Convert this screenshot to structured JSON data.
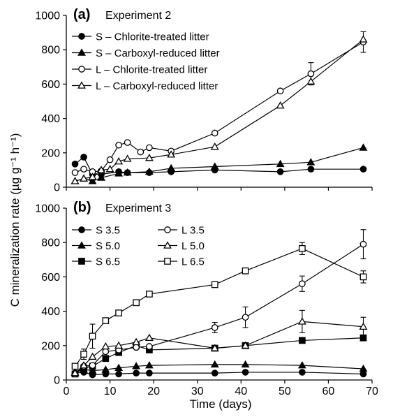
{
  "figure": {
    "ylabel": "C mineralization rate (µg g⁻¹ h⁻¹)",
    "xlabel": "Time (days)"
  },
  "chart_data": [
    {
      "type": "line",
      "panel_letter": "(a)",
      "title": "Experiment 2",
      "xlim": [
        0,
        70
      ],
      "ylim": [
        0,
        1000
      ],
      "x_ticks": [
        "0",
        "10",
        "20",
        "30",
        "40",
        "50",
        "60",
        "70"
      ],
      "y_ticks": [
        "0",
        "200",
        "400",
        "600",
        "800",
        "1000"
      ],
      "show_x_tick_labels": false,
      "legend_position": "top-left",
      "series": [
        {
          "name": "S – Chlorite-treated litter",
          "marker": "circle",
          "filled": true,
          "x": [
            2,
            4,
            6,
            8,
            12,
            14,
            19,
            24,
            34,
            49,
            56,
            68
          ],
          "y": [
            135,
            175,
            75,
            75,
            90,
            85,
            85,
            90,
            100,
            90,
            105,
            105
          ]
        },
        {
          "name": "S – Carboxyl-reduced litter",
          "marker": "triangle",
          "filled": true,
          "x": [
            2,
            4,
            6,
            8,
            12,
            14,
            19,
            24,
            34,
            49,
            56,
            68
          ],
          "y": [
            35,
            50,
            35,
            55,
            80,
            85,
            90,
            110,
            120,
            135,
            145,
            230
          ]
        },
        {
          "name": "L – Chlorite-treated litter",
          "marker": "circle",
          "filled": false,
          "x": [
            2,
            4,
            6,
            8,
            10,
            12,
            14,
            17,
            19,
            24,
            34,
            49,
            56,
            68
          ],
          "y": [
            85,
            105,
            90,
            95,
            160,
            245,
            260,
            205,
            230,
            210,
            315,
            560,
            660,
            845
          ],
          "err": {
            "56": 65,
            "68": 60
          }
        },
        {
          "name": "L – Carboxyl-reduced litter",
          "marker": "triangle",
          "filled": false,
          "x": [
            2,
            4,
            6,
            8,
            10,
            12,
            14,
            19,
            24,
            34,
            49,
            56,
            68
          ],
          "y": [
            35,
            50,
            60,
            100,
            105,
            150,
            165,
            170,
            190,
            235,
            475,
            615,
            860
          ]
        }
      ]
    },
    {
      "type": "line",
      "panel_letter": "(b)",
      "title": "Experiment 3",
      "xlim": [
        0,
        70
      ],
      "ylim": [
        0,
        1000
      ],
      "x_ticks": [
        "0",
        "10",
        "20",
        "30",
        "40",
        "50",
        "60",
        "70"
      ],
      "y_ticks": [
        "0",
        "200",
        "400",
        "600",
        "800",
        "1000"
      ],
      "show_x_tick_labels": true,
      "legend_position": "top-left",
      "legend_columns": 2,
      "series": [
        {
          "name": "S 3.5",
          "marker": "circle",
          "filled": true,
          "x": [
            2,
            4,
            6,
            9,
            12,
            16,
            19,
            34,
            41,
            54,
            68
          ],
          "y": [
            40,
            45,
            30,
            35,
            35,
            40,
            40,
            40,
            45,
            45,
            35
          ]
        },
        {
          "name": "S 5.0",
          "marker": "triangle",
          "filled": true,
          "x": [
            2,
            4,
            6,
            9,
            12,
            16,
            19,
            34,
            41,
            54,
            68
          ],
          "y": [
            45,
            60,
            55,
            60,
            70,
            80,
            85,
            90,
            90,
            85,
            65
          ]
        },
        {
          "name": "S 6.5",
          "marker": "square",
          "filled": true,
          "x": [
            2,
            4,
            6,
            9,
            12,
            16,
            19,
            34,
            41,
            54,
            68
          ],
          "y": [
            35,
            70,
            80,
            125,
            160,
            200,
            175,
            185,
            200,
            230,
            245
          ]
        },
        {
          "name": "L 3.5",
          "marker": "circle",
          "filled": false,
          "x": [
            2,
            4,
            6,
            9,
            12,
            16,
            19,
            34,
            41,
            54,
            68
          ],
          "y": [
            35,
            80,
            85,
            165,
            175,
            190,
            195,
            305,
            365,
            560,
            790
          ],
          "err": {
            "34": 30,
            "41": 60,
            "54": 45,
            "68": 85
          }
        },
        {
          "name": "L 5.0",
          "marker": "triangle",
          "filled": false,
          "x": [
            2,
            4,
            6,
            9,
            12,
            16,
            19,
            34,
            41,
            54,
            68
          ],
          "y": [
            40,
            85,
            135,
            195,
            200,
            220,
            245,
            185,
            200,
            340,
            310
          ],
          "err": {
            "54": 65,
            "68": 55
          }
        },
        {
          "name": "L 6.5",
          "marker": "square",
          "filled": false,
          "x": [
            2,
            4,
            6,
            9,
            12,
            16,
            19,
            34,
            41,
            54,
            68
          ],
          "y": [
            80,
            150,
            255,
            345,
            390,
            450,
            500,
            555,
            635,
            765,
            600
          ],
          "err": {
            "4": 30,
            "6": 70,
            "54": 35,
            "68": 35
          }
        }
      ]
    }
  ]
}
